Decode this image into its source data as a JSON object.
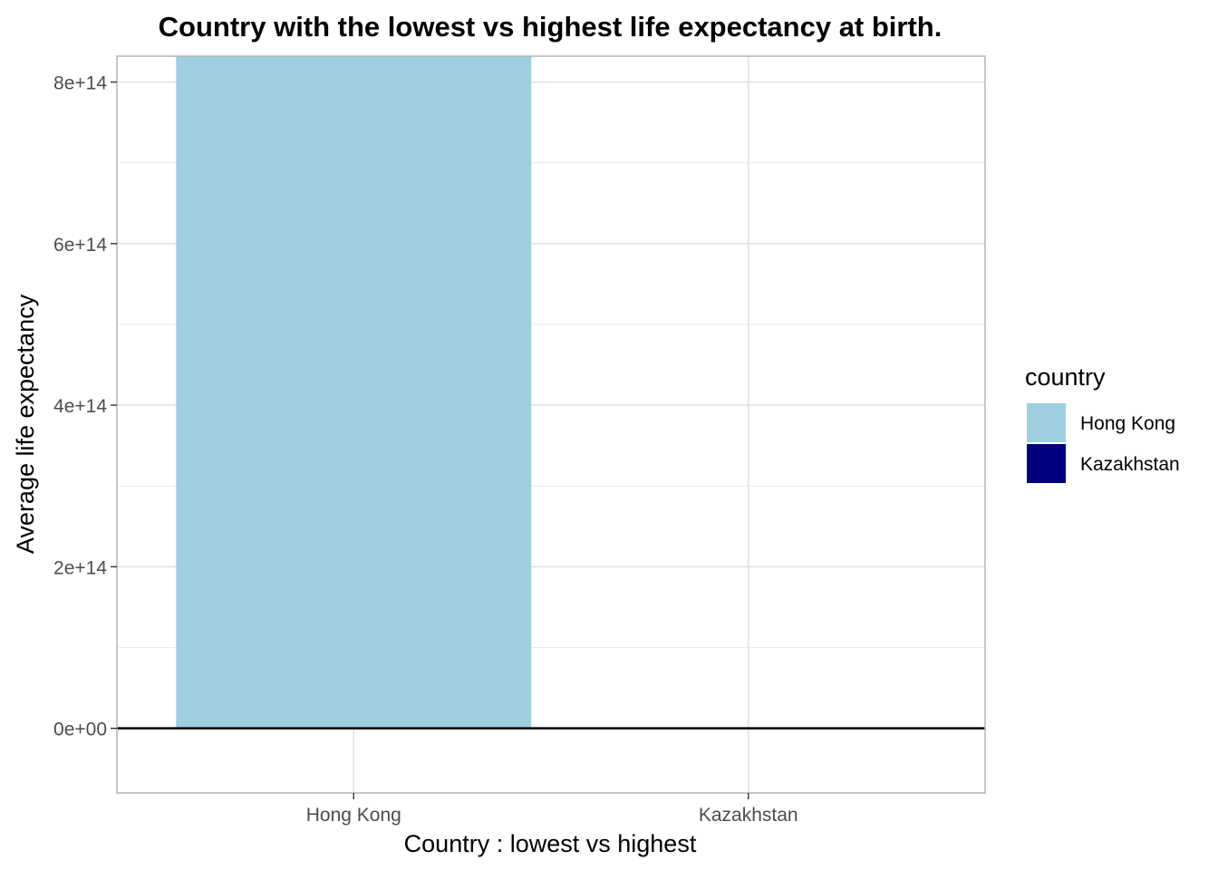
{
  "chart_data": {
    "type": "bar",
    "title": "Country with the lowest vs highest life expectancy at birth.",
    "xlabel": "Country : lowest vs highest",
    "ylabel": "Average life expectancy",
    "categories": [
      "Hong Kong",
      "Kazakhstan"
    ],
    "values": [
      832000000000000,
      0
    ],
    "colors": [
      "#9ecfe0",
      "#000080"
    ],
    "ylim": [
      -80000000000000,
      832000000000000
    ],
    "yticks": [
      0,
      200000000000000,
      400000000000000,
      600000000000000,
      800000000000000
    ],
    "ytick_labels": [
      "0e+00",
      "2e+14",
      "4e+14",
      "6e+14",
      "8e+14"
    ],
    "grid": true,
    "legend": {
      "title": "country",
      "placement": "right",
      "entries": [
        {
          "label": "Hong Kong",
          "color": "#9ecfe0"
        },
        {
          "label": "Kazakhstan",
          "color": "#000080"
        }
      ]
    }
  }
}
